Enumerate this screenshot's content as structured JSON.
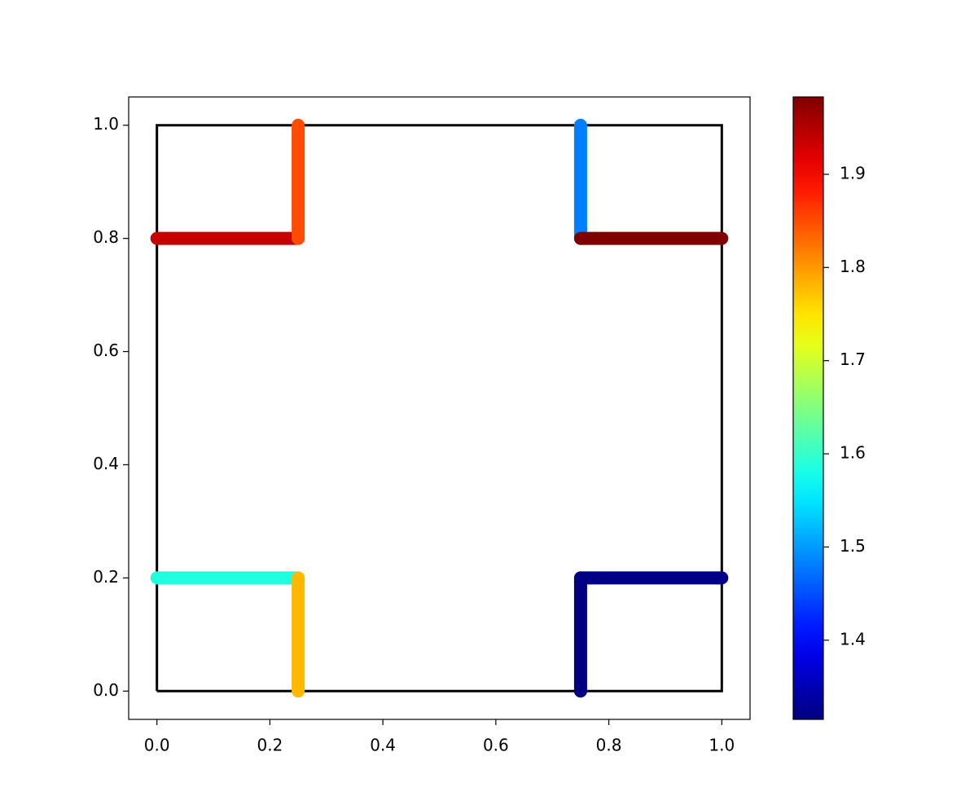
{
  "chart_data": {
    "type": "segments",
    "xlim": [
      -0.05,
      1.05
    ],
    "ylim": [
      -0.05,
      1.05
    ],
    "xticks": [
      {
        "value": 0,
        "label": "0.0"
      },
      0.2,
      0.4,
      0.6,
      0.8,
      {
        "value": 1,
        "label": "1.0"
      }
    ],
    "yticks": [
      {
        "value": 0,
        "label": "0.0"
      },
      0.2,
      0.4,
      0.6,
      0.8,
      {
        "value": 1,
        "label": "1.0"
      }
    ],
    "outline": {
      "x": [
        0,
        1,
        1,
        0,
        0
      ],
      "y": [
        0,
        0,
        1,
        1,
        0
      ],
      "color": "#000000"
    },
    "series": [
      {
        "x": [
          0,
          0.25
        ],
        "y": [
          0.8,
          0.8
        ],
        "value": 1.936
      },
      {
        "x": [
          0.25,
          0.25
        ],
        "y": [
          0.8,
          1.0
        ],
        "value": 1.85
      },
      {
        "x": [
          0.75,
          0.75
        ],
        "y": [
          1.0,
          0.8
        ],
        "value": 1.482
      },
      {
        "x": [
          0.75,
          1.0
        ],
        "y": [
          0.8,
          0.8
        ],
        "value": 1.983
      },
      {
        "x": [
          0,
          0.25
        ],
        "y": [
          0.2,
          0.2
        ],
        "value": 1.586
      },
      {
        "x": [
          0.25,
          0.25
        ],
        "y": [
          0.2,
          0
        ],
        "value": 1.779
      },
      {
        "x": [
          0.75,
          0.75
        ],
        "y": [
          0,
          0.2
        ],
        "value": 1.315
      },
      {
        "x": [
          0.75,
          1.0
        ],
        "y": [
          0.2,
          0.2
        ],
        "value": 1.32
      }
    ],
    "colorbar": {
      "colormap": "jet",
      "lim": [
        1.315,
        1.983
      ],
      "ticks": [
        1.4,
        1.5,
        1.6,
        1.7,
        1.8,
        1.9
      ]
    }
  }
}
